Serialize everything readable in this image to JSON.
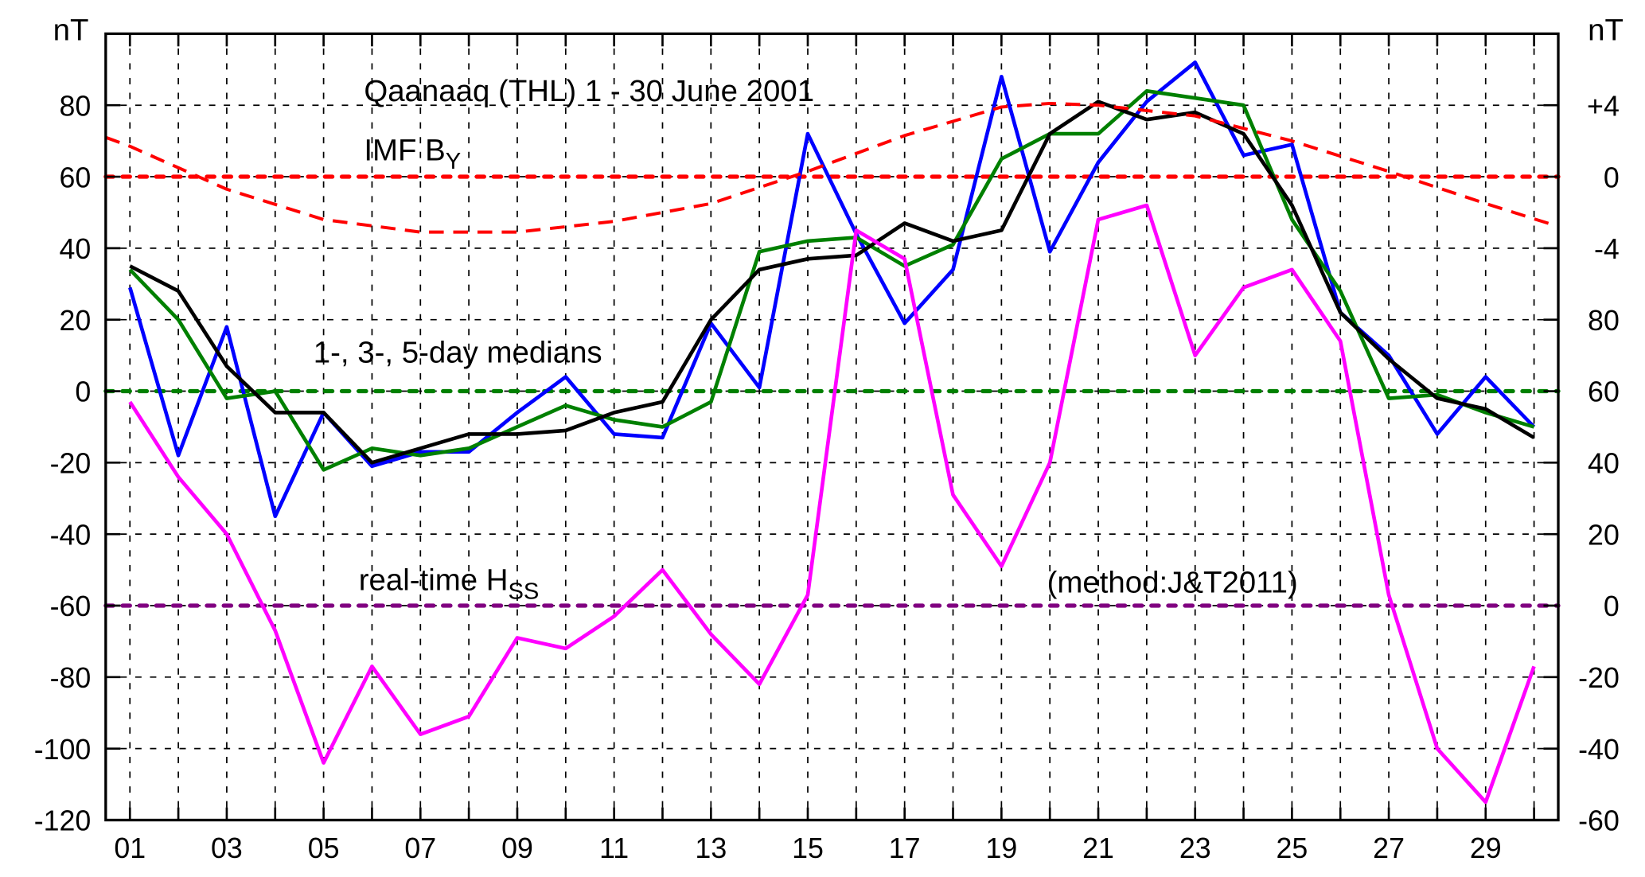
{
  "chart_data": {
    "type": "line",
    "title": "Qaanaaq  (THL) 1 - 30 June  2001",
    "annotations": {
      "imf": "IMF B",
      "imf_sub": "Y",
      "medians": "1-, 3-, 5-day medians",
      "hss": "real-time H",
      "hss_sub": "SS",
      "method": "(method:J&T2011)"
    },
    "left_unit": "nT",
    "right_unit": "nT",
    "xlim": [
      0.5,
      30.5
    ],
    "ylim": [
      -120,
      100
    ],
    "x_tick_labels": [
      "01",
      "03",
      "05",
      "07",
      "09",
      "11",
      "13",
      "15",
      "17",
      "19",
      "21",
      "23",
      "25",
      "27",
      "29"
    ],
    "y_ticks_left": [
      80,
      60,
      40,
      20,
      0,
      -20,
      -40,
      -60,
      -80,
      -100,
      -120
    ],
    "right_axis_by_ticks": [
      "+4",
      "0",
      "-4"
    ],
    "right_axis_hss_ticks": [
      "80",
      "60",
      "40",
      "20",
      "0",
      "-20",
      "-40",
      "-60"
    ],
    "grid": true,
    "reference_lines": [
      {
        "axis": "IMF BY",
        "value": 0,
        "color": "#ff0000"
      },
      {
        "axis": "left",
        "value": 0,
        "color": "#008000"
      },
      {
        "axis": "Hss",
        "value": 0,
        "color": "#800080"
      }
    ],
    "x": [
      1,
      2,
      3,
      4,
      5,
      6,
      7,
      8,
      9,
      10,
      11,
      12,
      13,
      14,
      15,
      16,
      17,
      18,
      19,
      20,
      21,
      22,
      23,
      24,
      25,
      26,
      27,
      28,
      29,
      30
    ],
    "series": [
      {
        "axis": "left",
        "color": "#0000ff",
        "values": [
          29,
          -18,
          18,
          -35,
          -6,
          -21,
          -17,
          -17,
          -6,
          4,
          -12,
          -13,
          19,
          1,
          72,
          44,
          19,
          34,
          88,
          39,
          64,
          81,
          92,
          66,
          69,
          22,
          10,
          -12,
          4,
          -10
        ]
      },
      {
        "axis": "left",
        "color": "#008000",
        "values": [
          34,
          20,
          -2,
          0,
          -22,
          -16,
          -18,
          -16,
          -10,
          -4,
          -8,
          -10,
          -3,
          39,
          42,
          43,
          35,
          41,
          65,
          72,
          72,
          84,
          82,
          80,
          48,
          28,
          -2,
          -1,
          -6,
          -10
        ]
      },
      {
        "axis": "left",
        "color": "#000000",
        "values": [
          35,
          28,
          7,
          -6,
          -6,
          -20,
          -16,
          -12,
          -12,
          -11,
          -6,
          -3,
          20,
          34,
          37,
          38,
          47,
          42,
          45,
          72,
          81,
          76,
          78,
          72,
          52,
          22,
          9,
          -2,
          -5,
          -13
        ]
      },
      {
        "axis": "Hss",
        "color": "#ff00ff",
        "values": [
          57,
          36,
          20,
          -7,
          -44,
          -17,
          -36,
          -31,
          -9,
          -12,
          -3,
          10,
          -8,
          -22,
          3,
          105,
          97,
          31,
          11,
          40,
          108,
          112,
          70,
          89,
          94,
          74,
          3,
          -40,
          -55,
          -17
        ]
      },
      {
        "axis": "IMF BY",
        "color": "#ff0000",
        "dashed": true,
        "x": [
          0.5,
          1,
          3,
          5,
          7,
          9,
          11,
          13,
          15,
          17,
          19,
          20,
          21,
          23,
          25,
          27,
          29,
          30.4
        ],
        "values": [
          2.2,
          1.7,
          -0.7,
          -2.4,
          -3.1,
          -3.1,
          -2.5,
          -1.5,
          0.3,
          2.3,
          3.9,
          4.1,
          4.0,
          3.4,
          2.0,
          0.3,
          -1.5,
          -2.7
        ]
      }
    ]
  }
}
